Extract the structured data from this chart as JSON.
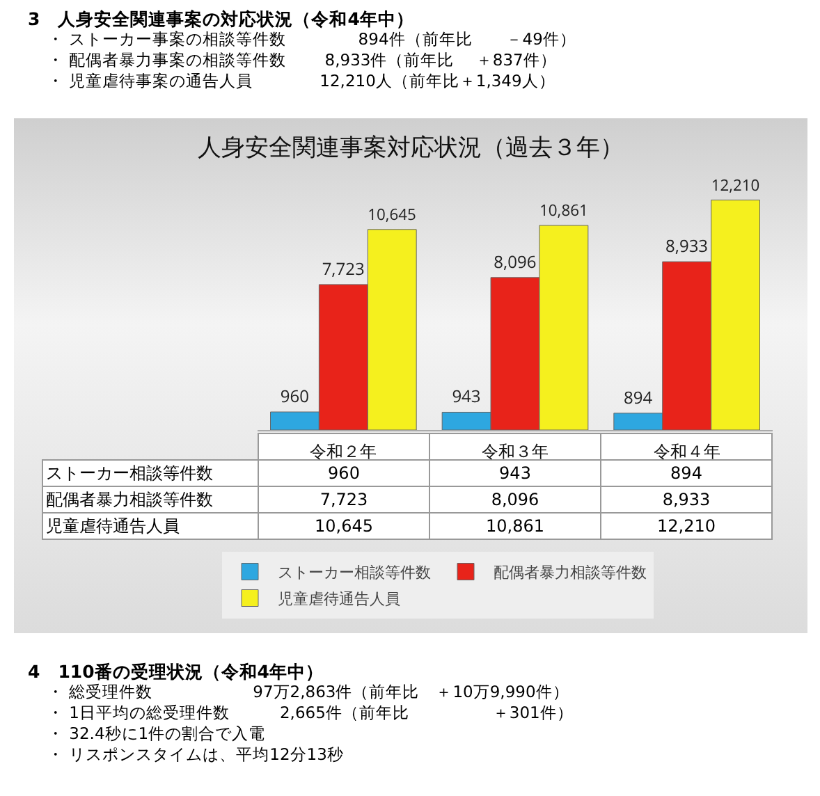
{
  "chart_data": {
    "type": "bar",
    "title": "人身安全関連事案対応状況（過去３年）",
    "categories": [
      "令和２年",
      "令和３年",
      "令和４年"
    ],
    "series": [
      {
        "name": "ストーカー相談等件数",
        "color": "#2ea7e0",
        "values": [
          960,
          943,
          894
        ],
        "value_labels": [
          "960",
          "943",
          "894"
        ]
      },
      {
        "name": "配偶者暴力相談等件数",
        "color": "#e8231a",
        "values": [
          7723,
          8096,
          8933
        ],
        "value_labels": [
          "7,723",
          "8,096",
          "8,933"
        ]
      },
      {
        "name": "児童虐待通告人員",
        "color": "#f5f01e",
        "values": [
          10645,
          10861,
          12210
        ],
        "value_labels": [
          "10,645",
          "10,861",
          "12,210"
        ]
      }
    ],
    "legend": "bottom",
    "grid": false,
    "tick_labels": "x",
    "annotations": [
      "3　人身安全関連事案の対応状況（令和4年中）",
      "・ ストーカー事案の相談等件数　　　　 894件（前年比　　－49件）",
      "・ 配偶者暴力事案の相談等件数　　 8,933件（前年比　 ＋837件）",
      "・ 児童虐待事案の通告人員　　　　12,210人（前年比＋1,349人）",
      "4　110番の受理状況（令和4年中）",
      "・ 総受理件数　　　　　　97万2,863件（前年比　＋10万9,990件）",
      "・ 1日平均の総受理件数　　　2,665件（前年比　　　　　＋301件）",
      "・ 32.4秒に1件の割合で入電",
      "・ リスポンスタイムは、平均12分13秒"
    ]
  }
}
